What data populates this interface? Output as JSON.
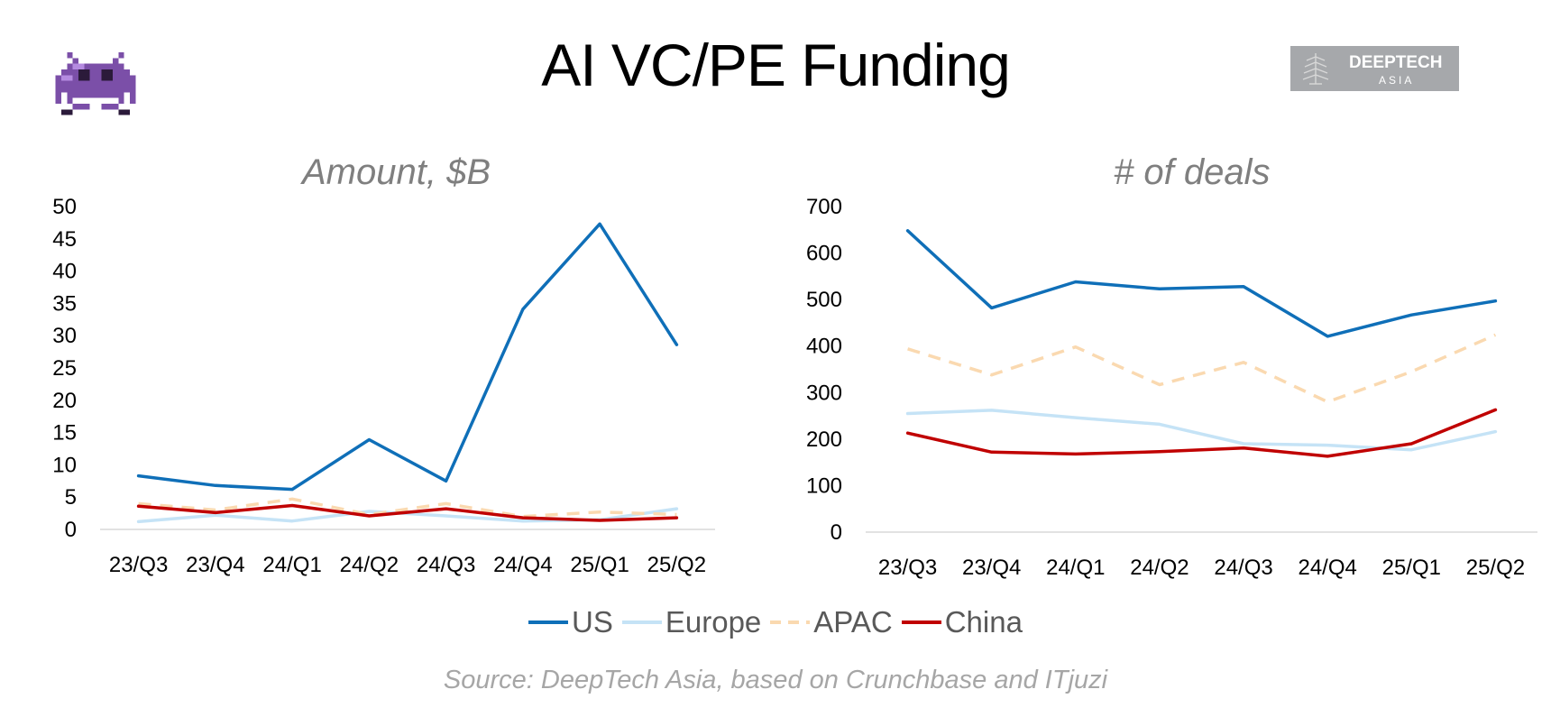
{
  "title": "AI VC/PE Funding",
  "logo": {
    "name": "DEEPTECH",
    "sub": "ASIA"
  },
  "source": "Source: DeepTech Asia, based on Crunchbase and ITjuzi",
  "legend": [
    {
      "key": "us",
      "label": "US",
      "color": "#0f6fb8",
      "dash": false
    },
    {
      "key": "europe",
      "label": "Europe",
      "color": "#c5e3f6",
      "dash": false
    },
    {
      "key": "apac",
      "label": "APAC",
      "color": "#fad9b0",
      "dash": true
    },
    {
      "key": "china",
      "label": "China",
      "color": "#c00000",
      "dash": false
    }
  ],
  "chart_data": [
    {
      "type": "line",
      "title": "Amount, $B",
      "categories": [
        "23/Q3",
        "23/Q4",
        "24/Q1",
        "24/Q2",
        "24/Q3",
        "24/Q4",
        "25/Q1",
        "25/Q2"
      ],
      "ylim": [
        0,
        50
      ],
      "yticks": [
        0,
        5,
        10,
        15,
        20,
        25,
        30,
        35,
        40,
        45,
        50
      ],
      "grid": false,
      "series": [
        {
          "name": "US",
          "values": [
            8.3,
            6.8,
            6.2,
            13.9,
            7.5,
            34.1,
            47.3,
            28.6
          ]
        },
        {
          "name": "Europe",
          "values": [
            1.2,
            2.2,
            1.3,
            2.8,
            2.1,
            1.3,
            1.5,
            3.2
          ]
        },
        {
          "name": "APAC",
          "values": [
            4.0,
            3.0,
            4.7,
            2.3,
            4.0,
            2.0,
            2.7,
            2.3
          ]
        },
        {
          "name": "China",
          "values": [
            3.6,
            2.6,
            3.7,
            2.1,
            3.2,
            1.8,
            1.4,
            1.8
          ]
        }
      ]
    },
    {
      "type": "line",
      "title": "# of deals",
      "categories": [
        "23/Q3",
        "23/Q4",
        "24/Q1",
        "24/Q2",
        "24/Q3",
        "24/Q4",
        "25/Q1",
        "25/Q2"
      ],
      "ylim": [
        0,
        700
      ],
      "yticks": [
        0,
        100,
        200,
        300,
        400,
        500,
        600,
        700
      ],
      "grid": false,
      "series": [
        {
          "name": "US",
          "values": [
            648,
            482,
            538,
            523,
            528,
            421,
            467,
            497
          ]
        },
        {
          "name": "Europe",
          "values": [
            255,
            262,
            246,
            232,
            190,
            187,
            177,
            216
          ]
        },
        {
          "name": "APAC",
          "values": [
            394,
            338,
            398,
            317,
            365,
            280,
            345,
            424
          ]
        },
        {
          "name": "China",
          "values": [
            213,
            172,
            168,
            173,
            181,
            163,
            190,
            263
          ]
        }
      ]
    }
  ]
}
